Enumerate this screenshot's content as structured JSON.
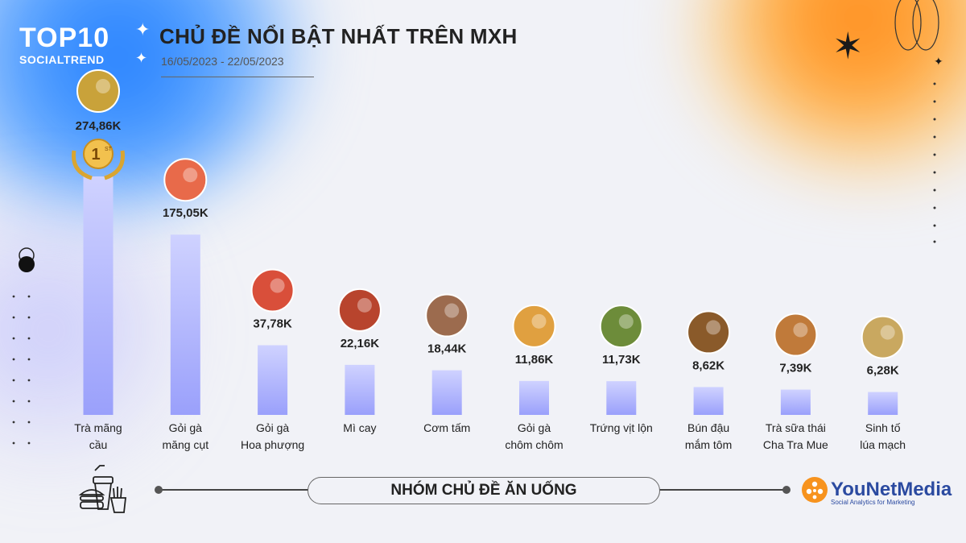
{
  "header": {
    "logo_top": "TOP10",
    "logo_sub": "SOCIALTREND",
    "title": "CHỦ ĐỀ NỔI BẬT NHẤT TRÊN MXH",
    "date_range": "16/05/2023 - 22/05/2023"
  },
  "footer": {
    "group_label": "NHÓM CHỦ ĐỀ ĂN UỐNG",
    "brand_name": "YouNetMedia",
    "brand_tagline": "Social Analytics for Marketing"
  },
  "badge": {
    "rank": "1",
    "suffix": "ST"
  },
  "colors": {
    "bar_light": "#cfd2ff",
    "bar_dark": "#9aa0fb",
    "text": "#222222"
  },
  "chart_data": {
    "type": "bar",
    "categories": [
      "Trà mãng cầu",
      "Gỏi gà măng cụt",
      "Gỏi gà Hoa phượng",
      "Mì cay",
      "Cơm tấm",
      "Gỏi gà chôm chôm",
      "Trứng vịt lộn",
      "Bún đậu mắm tôm",
      "Trà sữa thái Cha Tra Mue",
      "Sinh tố lúa mạch"
    ],
    "category_lines": [
      [
        "Trà mãng",
        "cầu"
      ],
      [
        "Gỏi gà",
        "măng cụt"
      ],
      [
        "Gỏi gà",
        "Hoa phượng"
      ],
      [
        "Mì cay"
      ],
      [
        "Cơm tấm"
      ],
      [
        "Gỏi gà",
        "chôm chôm"
      ],
      [
        "Trứng vịt lộn"
      ],
      [
        "Bún đậu",
        "mắm tôm"
      ],
      [
        "Trà sữa thái",
        "Cha Tra Mue"
      ],
      [
        "Sinh tố",
        "lúa mạch"
      ]
    ],
    "values": [
      274.86,
      175.05,
      37.78,
      22.16,
      18.44,
      11.86,
      11.73,
      8.62,
      7.39,
      6.28
    ],
    "value_labels": [
      "274,86K",
      "175,05K",
      "37,78K",
      "22,16K",
      "18,44K",
      "11,86K",
      "11,73K",
      "8,62K",
      "7,39K",
      "6,28K"
    ],
    "title": "CHỦ ĐỀ NỔI BẬT NHẤT TRÊN MXH",
    "xlabel": "",
    "ylabel": "",
    "note": "bars not drawn to linear scale in original",
    "grid": false
  }
}
